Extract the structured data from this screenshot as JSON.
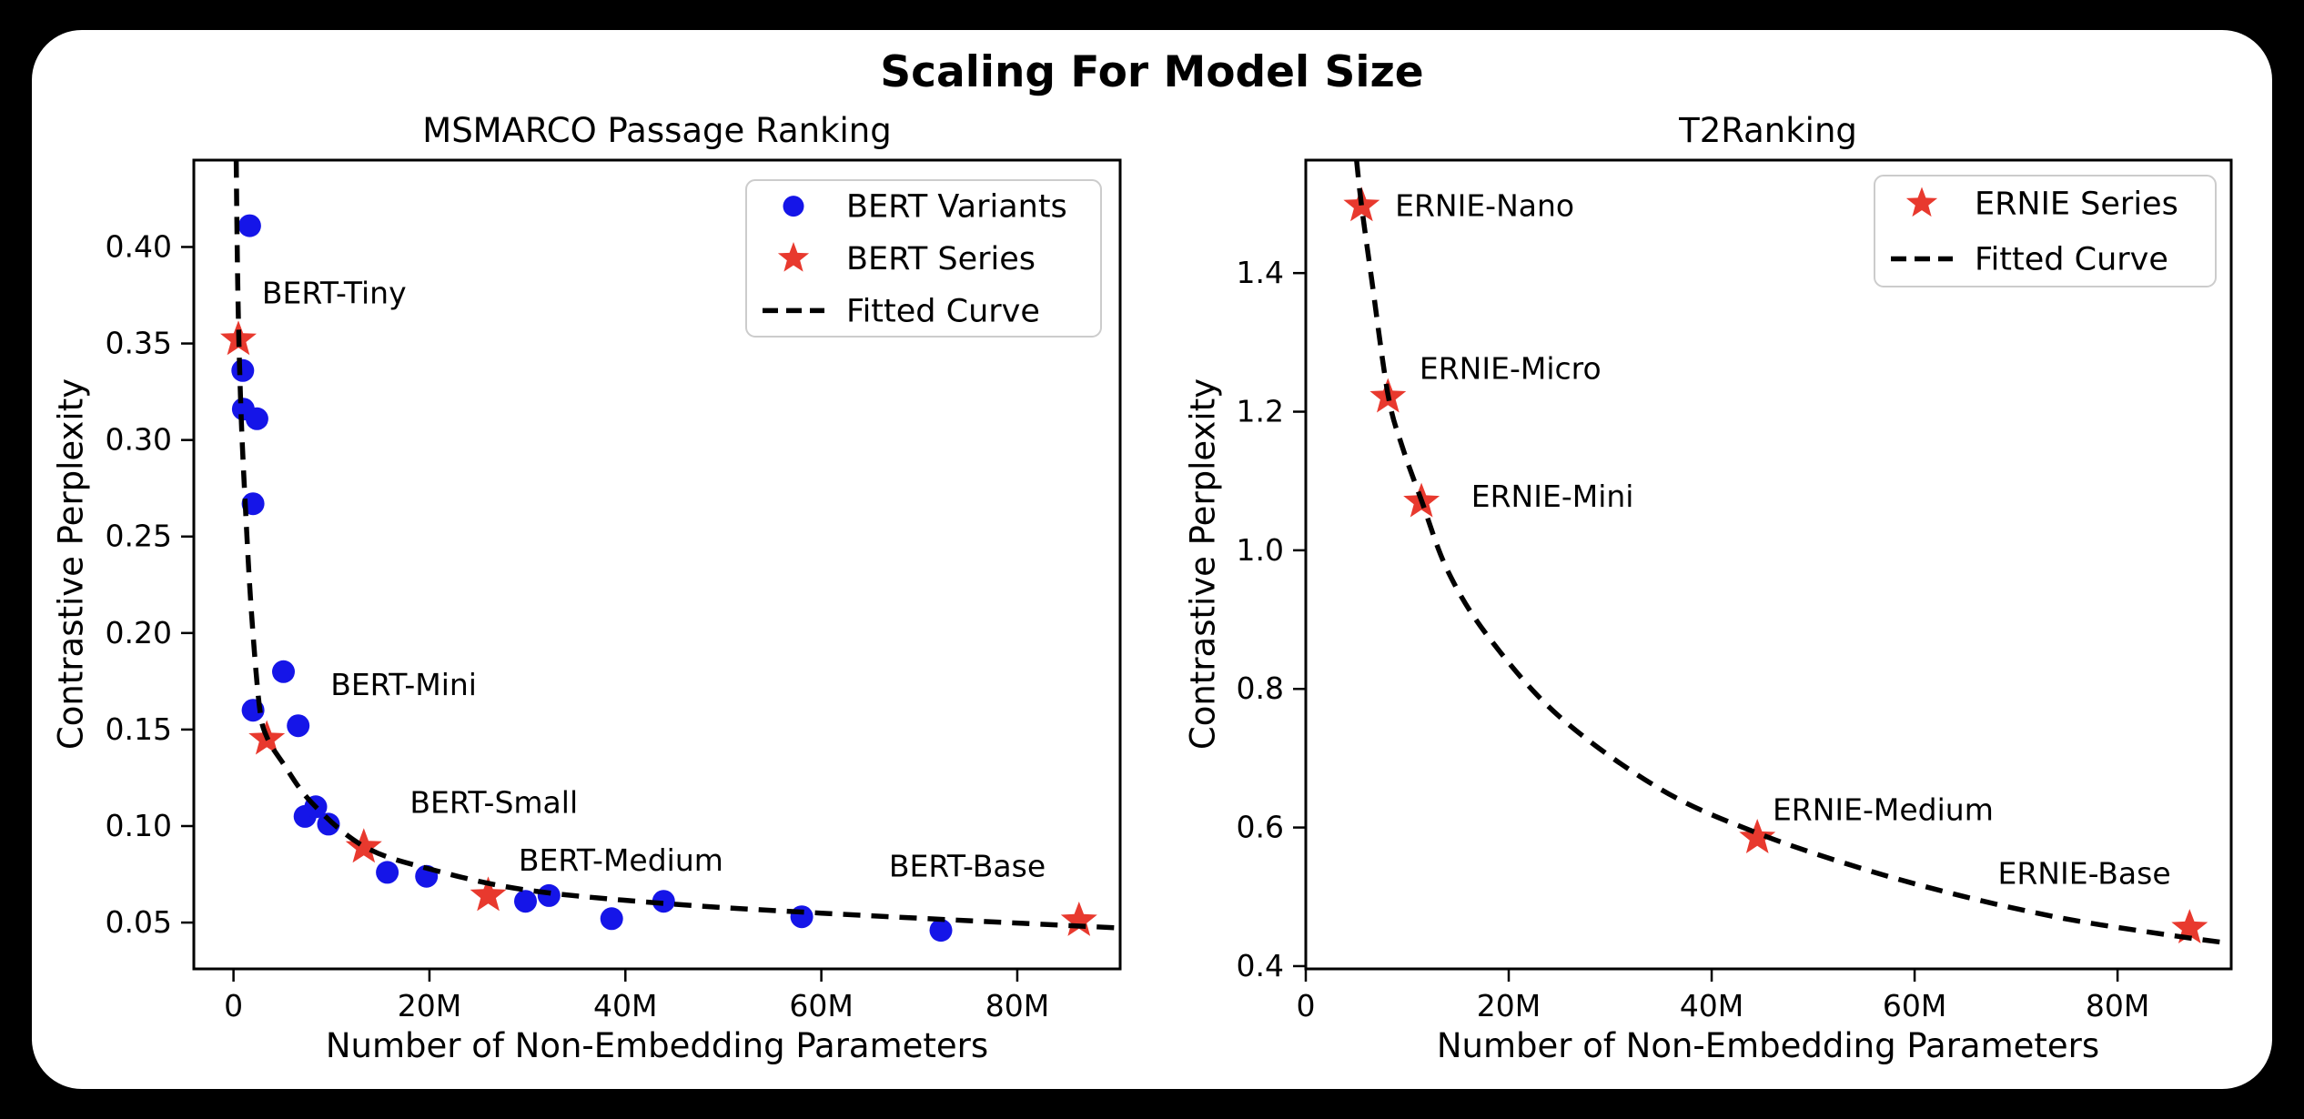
{
  "figure": {
    "title": "Scaling For Model Size"
  },
  "colors": {
    "background": "#000000",
    "card": "#ffffff",
    "blue_dot": "#1515e8",
    "red_star": "#e8392e",
    "curve": "#000000",
    "legend_border": "#cccccc"
  },
  "chart_data": [
    {
      "type": "scatter",
      "title": "MSMARCO Passage Ranking",
      "xlabel": "Number of Non-Embedding Parameters",
      "ylabel": "Contrastive Perplexity",
      "x_unit": "millions",
      "xlim_m": [
        -4.05,
        90.5
      ],
      "ylim": [
        0.026,
        0.445
      ],
      "grid": false,
      "legend_position": "upper right",
      "x_ticks": [
        {
          "value_m": 0,
          "label": "0"
        },
        {
          "value_m": 20,
          "label": "20M"
        },
        {
          "value_m": 40,
          "label": "40M"
        },
        {
          "value_m": 60,
          "label": "60M"
        },
        {
          "value_m": 80,
          "label": "80M"
        }
      ],
      "y_ticks": [
        {
          "value": 0.4,
          "label": "0.40"
        },
        {
          "value": 0.35,
          "label": "0.35"
        },
        {
          "value": 0.3,
          "label": "0.30"
        },
        {
          "value": 0.25,
          "label": "0.25"
        },
        {
          "value": 0.2,
          "label": "0.20"
        },
        {
          "value": 0.15,
          "label": "0.15"
        },
        {
          "value": 0.1,
          "label": "0.10"
        },
        {
          "value": 0.05,
          "label": "0.05"
        }
      ],
      "series": [
        {
          "name": "BERT Variants",
          "marker": "circle",
          "color_key": "blue_dot",
          "points": [
            [
              0.95,
              0.336
            ],
            [
              1.0,
              0.316
            ],
            [
              1.65,
              0.411
            ],
            [
              2.0,
              0.267
            ],
            [
              2.0,
              0.16
            ],
            [
              2.4,
              0.311
            ],
            [
              5.1,
              0.18
            ],
            [
              6.6,
              0.152
            ],
            [
              7.3,
              0.105
            ],
            [
              8.4,
              0.11
            ],
            [
              9.7,
              0.101
            ],
            [
              15.7,
              0.076
            ],
            [
              19.7,
              0.074
            ],
            [
              29.8,
              0.061
            ],
            [
              32.2,
              0.064
            ],
            [
              38.6,
              0.052
            ],
            [
              43.9,
              0.061
            ],
            [
              58.0,
              0.053
            ],
            [
              72.2,
              0.046
            ]
          ]
        },
        {
          "name": "BERT Series",
          "marker": "star",
          "color_key": "red_star",
          "models": [
            "BERT-Tiny",
            "BERT-Mini",
            "BERT-Small",
            "BERT-Medium",
            "BERT-Base"
          ],
          "points": [
            [
              0.5,
              0.352
            ],
            [
              3.4,
              0.145
            ],
            [
              13.3,
              0.089
            ],
            [
              26.0,
              0.064
            ],
            [
              86.3,
              0.051
            ]
          ]
        },
        {
          "name": "Fitted Curve",
          "marker": "dashed-line",
          "color_key": "curve",
          "points": [
            [
              0.28,
              0.4448
            ],
            [
              0.4,
              0.392
            ],
            [
              0.55,
              0.352
            ],
            [
              0.8,
              0.31
            ],
            [
              1.2,
              0.267
            ],
            [
              1.8,
              0.213
            ],
            [
              2.65,
              0.162
            ],
            [
              3.42,
              0.146
            ],
            [
              5.0,
              0.133
            ],
            [
              8.0,
              0.112
            ],
            [
              13.3,
              0.0895
            ],
            [
              20.0,
              0.0778
            ],
            [
              30.0,
              0.0668
            ],
            [
              45.0,
              0.0595
            ],
            [
              60.0,
              0.0549
            ],
            [
              75.0,
              0.051
            ],
            [
              90.0,
              0.0473
            ]
          ]
        }
      ],
      "annotations": [
        {
          "text": "BERT-Tiny",
          "x_m": 2.9,
          "y": 0.376
        },
        {
          "text": "BERT-Mini",
          "x_m": 9.9,
          "y": 0.173
        },
        {
          "text": "BERT-Small",
          "x_m": 18.0,
          "y": 0.112
        },
        {
          "text": "BERT-Medium",
          "x_m": 29.1,
          "y": 0.082
        },
        {
          "text": "BERT-Base",
          "x_m": 66.9,
          "y": 0.079
        }
      ],
      "legend": {
        "entries": [
          "BERT Variants",
          "BERT Series",
          "Fitted Curve"
        ]
      }
    },
    {
      "type": "scatter",
      "title": "T2Ranking",
      "xlabel": "Number of Non-Embedding Parameters",
      "ylabel": "Contrastive Perplexity",
      "x_unit": "millions",
      "xlim_m": [
        0,
        91.2
      ],
      "ylim": [
        0.396,
        1.563
      ],
      "grid": false,
      "legend_position": "upper right",
      "x_ticks": [
        {
          "value_m": 0,
          "label": "0"
        },
        {
          "value_m": 20,
          "label": "20M"
        },
        {
          "value_m": 40,
          "label": "40M"
        },
        {
          "value_m": 60,
          "label": "60M"
        },
        {
          "value_m": 80,
          "label": "80M"
        }
      ],
      "y_ticks": [
        {
          "value": 1.4,
          "label": "1.4"
        },
        {
          "value": 1.2,
          "label": "1.2"
        },
        {
          "value": 1.0,
          "label": "1.0"
        },
        {
          "value": 0.8,
          "label": "0.8"
        },
        {
          "value": 0.6,
          "label": "0.6"
        },
        {
          "value": 0.4,
          "label": "0.4"
        }
      ],
      "series": [
        {
          "name": "ERNIE Series",
          "marker": "star",
          "color_key": "red_star",
          "models": [
            "ERNIE-Nano",
            "ERNIE-Micro",
            "ERNIE-Mini",
            "ERNIE-Medium",
            "ERNIE-Base"
          ],
          "points": [
            [
              5.5,
              1.497
            ],
            [
              8.1,
              1.221
            ],
            [
              11.4,
              1.07
            ],
            [
              44.5,
              0.585
            ],
            [
              87.1,
              0.455
            ]
          ]
        },
        {
          "name": "Fitted Curve",
          "marker": "dashed-line",
          "color_key": "curve",
          "points": [
            [
              5.0,
              1.563
            ],
            [
              5.5,
              1.497
            ],
            [
              6.5,
              1.39
            ],
            [
              8.1,
              1.225
            ],
            [
              9.5,
              1.15
            ],
            [
              11.4,
              1.072
            ],
            [
              14.0,
              0.97
            ],
            [
              18.0,
              0.875
            ],
            [
              25.0,
              0.76
            ],
            [
              35.0,
              0.655
            ],
            [
              44.5,
              0.592
            ],
            [
              55.0,
              0.54
            ],
            [
              65.0,
              0.5
            ],
            [
              75.0,
              0.468
            ],
            [
              85.0,
              0.445
            ],
            [
              91.0,
              0.433
            ]
          ]
        }
      ],
      "annotations": [
        {
          "text": "ERNIE-Nano",
          "x_m": 8.8,
          "y": 1.497
        },
        {
          "text": "ERNIE-Micro",
          "x_m": 11.2,
          "y": 1.262
        },
        {
          "text": "ERNIE-Mini",
          "x_m": 16.3,
          "y": 1.077
        },
        {
          "text": "ERNIE-Medium",
          "x_m": 46.0,
          "y": 0.625
        },
        {
          "text": "ERNIE-Base",
          "x_m": 68.2,
          "y": 0.533
        }
      ],
      "legend": {
        "entries": [
          "ERNIE Series",
          "Fitted Curve"
        ]
      }
    }
  ]
}
